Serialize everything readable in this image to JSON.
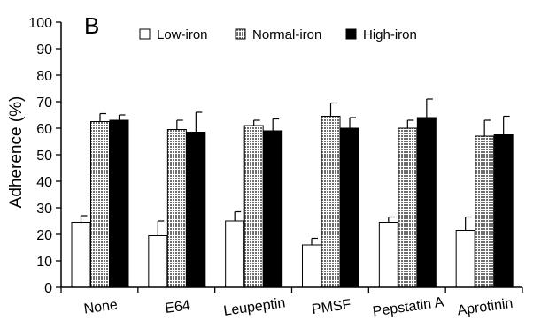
{
  "chart_data": {
    "type": "bar",
    "panel_label": "B",
    "title": "",
    "xlabel": "",
    "ylabel": "Adherence (%)",
    "ylim": [
      0,
      100
    ],
    "yticks": [
      0,
      10,
      20,
      30,
      40,
      50,
      60,
      70,
      80,
      90,
      100
    ],
    "grid": false,
    "legend_position": "top",
    "categories": [
      "None",
      "E64",
      "Leupeptin",
      "PMSF",
      "Pepstatin A",
      "Aprotinin"
    ],
    "series": [
      {
        "name": "Low-iron",
        "style": "white",
        "values": [
          24.5,
          19.5,
          25,
          16,
          24.5,
          21.5
        ],
        "errors": [
          2.5,
          5.5,
          3.5,
          2.5,
          2,
          5
        ]
      },
      {
        "name": "Normal-iron",
        "style": "dotted",
        "values": [
          62.5,
          59.5,
          61,
          64.5,
          60,
          57
        ],
        "errors": [
          3,
          3.5,
          2,
          5,
          3,
          6
        ]
      },
      {
        "name": "High-iron",
        "style": "black",
        "values": [
          63,
          58.5,
          59,
          60,
          64,
          57.5
        ],
        "errors": [
          2,
          7.5,
          4.5,
          4,
          7,
          7
        ]
      }
    ],
    "colors": {
      "white": "#ffffff",
      "dotted": "#8a8a8a",
      "black": "#000000"
    }
  }
}
